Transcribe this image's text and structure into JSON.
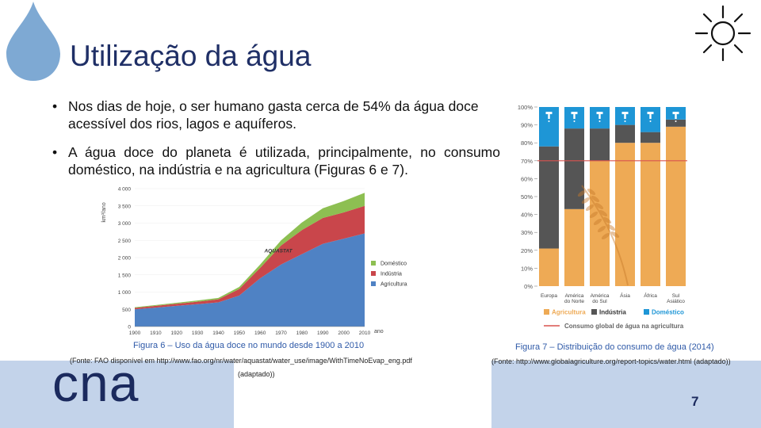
{
  "slide": {
    "title": "Utilização da água",
    "bullets": [
      "Nos dias de hoje, o ser humano gasta cerca de 54% da água doce acessível dos rios, lagos e aquíferos.",
      "A água doce do planeta é utilizada, principalmente, no consumo doméstico, na indústria e na agricultura (Figuras 6 e 7)."
    ],
    "bullet_char": "•",
    "page_number": "7",
    "logo_text": "cna",
    "colors": {
      "title": "#1f2f66",
      "band": "#c3d3ea",
      "drop": "#7ea9d3",
      "caption": "#2f5aa8"
    },
    "icons": [
      "water-drop-icon",
      "sun-icon",
      "faucet-icon",
      "wheat-icon"
    ]
  },
  "figure6": {
    "caption": "Figura 6 – Uso da água doce no mundo desde 1900 a 2010",
    "source": "(Fonte: FAO disponível em http://www.fao.org/nr/water/aquastat/water_use/image/WithTimeNoEvap_eng.pdf",
    "source_cont": "(adaptado))",
    "watermark": "AQUASTAT"
  },
  "figure7": {
    "caption": "Figura 7 – Distribuição do consumo de água (2014)",
    "source": "(Fonte: http://www.globalagriculture.org/report-topics/water.html (adaptado))"
  },
  "chart_data": [
    {
      "type": "area",
      "title": "",
      "ylabel": "km³/ano",
      "xlabel": "ano",
      "x": [
        1900,
        1910,
        1920,
        1930,
        1940,
        1950,
        1960,
        1970,
        1980,
        1990,
        2000,
        2010
      ],
      "xticks": [
        "1900",
        "1910",
        "1920",
        "1930",
        "1940",
        "1950",
        "1960",
        "1970",
        "1980",
        "1990",
        "2000",
        "2010"
      ],
      "ylim": [
        0,
        4000
      ],
      "yticks": [
        "0",
        "500",
        "1 000",
        "1 500",
        "2 000",
        "2 500",
        "3 000",
        "3 500",
        "4 000"
      ],
      "stacked": true,
      "series": [
        {
          "name": "Agricultura",
          "color": "#4f82c4",
          "values": [
            500,
            550,
            600,
            650,
            700,
            900,
            1400,
            1800,
            2100,
            2400,
            2550,
            2700
          ]
        },
        {
          "name": "Indústria",
          "color": "#c9464b",
          "values": [
            40,
            50,
            60,
            70,
            90,
            190,
            300,
            550,
            700,
            750,
            760,
            800
          ]
        },
        {
          "name": "Doméstico",
          "color": "#8dbf52",
          "values": [
            20,
            25,
            30,
            35,
            40,
            60,
            100,
            150,
            220,
            280,
            330,
            380
          ]
        }
      ],
      "legend_position": "right"
    },
    {
      "type": "bar",
      "stacked": true,
      "title": "",
      "categories": [
        "Europa",
        "América do Norte",
        "América do Sul",
        "Ásia",
        "África",
        "Sul Asiático"
      ],
      "yticks": [
        "0%",
        "10%",
        "20%",
        "30%",
        "40%",
        "50%",
        "60%",
        "70%",
        "80%",
        "90%",
        "100%"
      ],
      "ylim": [
        0,
        100
      ],
      "series": [
        {
          "name": "Agricultura",
          "color": "#eeaa55",
          "values": [
            21,
            43,
            70,
            80,
            80,
            89
          ]
        },
        {
          "name": "Indústria",
          "color": "#555555",
          "values": [
            57,
            45,
            18,
            10,
            6,
            4
          ]
        },
        {
          "name": "Doméstico",
          "color": "#1e96d6",
          "values": [
            22,
            12,
            12,
            10,
            14,
            7
          ]
        }
      ],
      "reference_line": {
        "label": "Consumo global de água na agricultura",
        "value": 70,
        "color": "#d9534f"
      },
      "legend_position": "bottom"
    }
  ]
}
